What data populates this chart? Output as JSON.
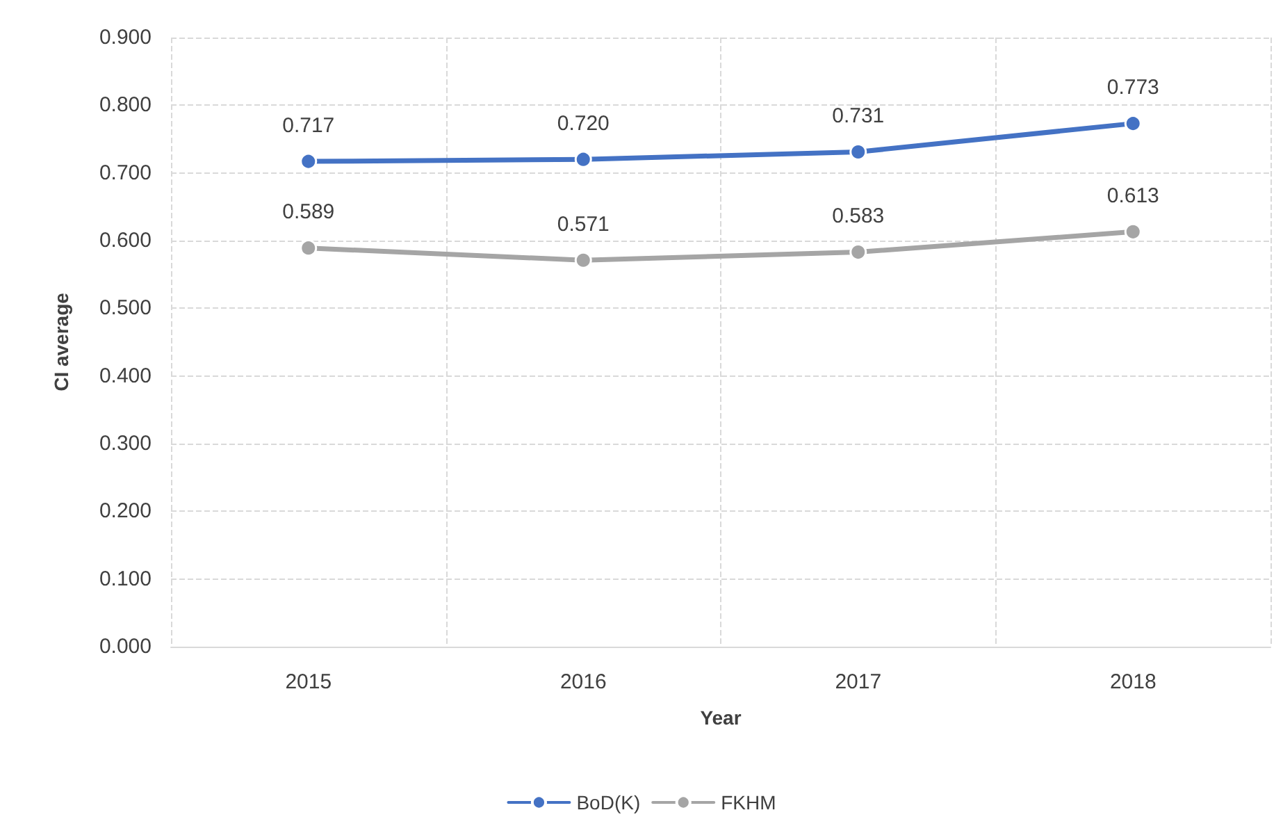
{
  "chart_data": {
    "type": "line",
    "xlabel": "Year",
    "ylabel": "CI average",
    "categories": [
      "2015",
      "2016",
      "2017",
      "2018"
    ],
    "series": [
      {
        "name": "BoD(K)",
        "color": "#4472c4",
        "values": [
          0.717,
          0.72,
          0.731,
          0.773
        ],
        "value_labels": [
          "0.717",
          "0.720",
          "0.731",
          "0.773"
        ]
      },
      {
        "name": "FKHM",
        "color": "#a5a5a5",
        "values": [
          0.589,
          0.571,
          0.583,
          0.613
        ],
        "value_labels": [
          "0.589",
          "0.571",
          "0.583",
          "0.613"
        ]
      }
    ],
    "ylim": [
      0,
      0.9
    ],
    "yticks": [
      {
        "value": 0,
        "label": "0.000"
      },
      {
        "value": 0.1,
        "label": "0.100"
      },
      {
        "value": 0.2,
        "label": "0.200"
      },
      {
        "value": 0.3,
        "label": "0.300"
      },
      {
        "value": 0.4,
        "label": "0.400"
      },
      {
        "value": 0.5,
        "label": "0.500"
      },
      {
        "value": 0.6,
        "label": "0.600"
      },
      {
        "value": 0.7,
        "label": "0.700"
      },
      {
        "value": 0.8,
        "label": "0.800"
      },
      {
        "value": 0.9,
        "label": "0.900"
      }
    ],
    "grid": true,
    "legend": "bottom",
    "marker": "circle",
    "line_style": "solid"
  }
}
